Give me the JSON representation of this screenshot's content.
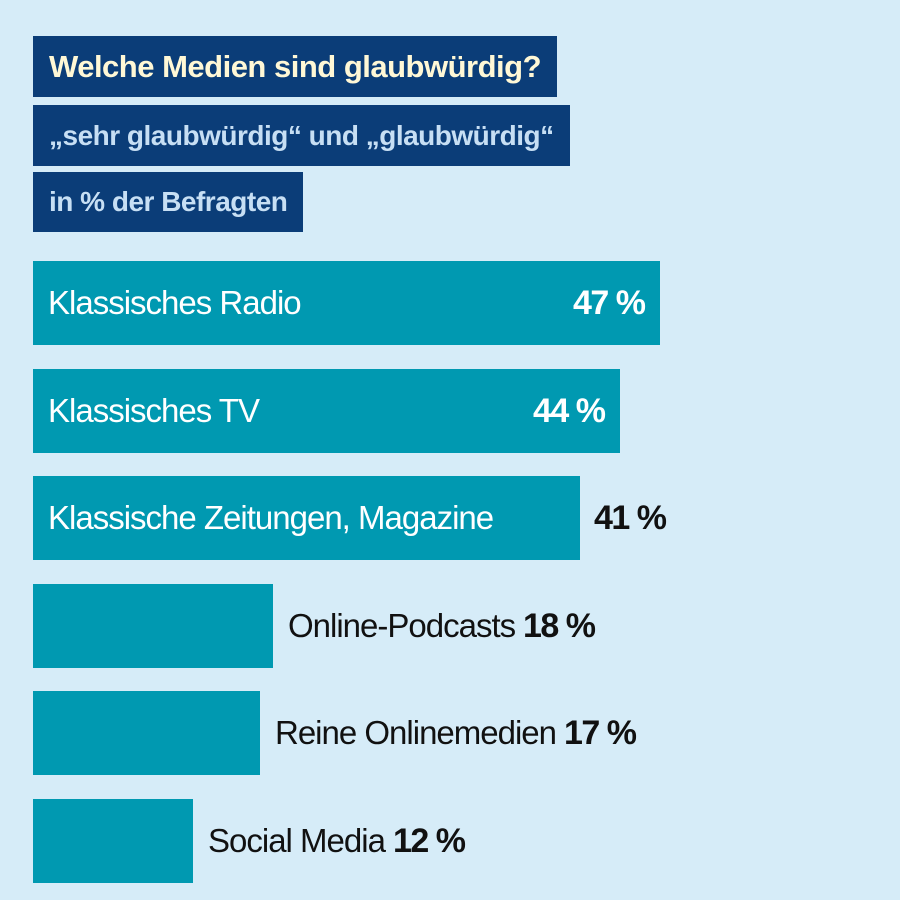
{
  "chart_data": {
    "type": "bar",
    "orientation": "horizontal",
    "title": "Welche Medien sind glaubwürdig?",
    "subtitle": "„sehr glaubwürdig“ und „glaubwürdig“",
    "unit_label": "in % der Befragten",
    "categories": [
      "Klassisches Radio",
      "Klassisches TV",
      "Klassische Zeitungen, Magazine",
      "Online-Podcasts",
      "Reine Onlinemedien",
      "Social Media"
    ],
    "values": [
      47,
      44,
      41,
      18,
      17,
      12
    ],
    "value_labels": [
      "47 %",
      "44 %",
      "41 %",
      "18 %",
      "17 %",
      "12 %"
    ],
    "label_positions": [
      "inside",
      "inside",
      "inside",
      "outside",
      "outside",
      "outside"
    ],
    "value_positions": [
      "inside",
      "inside",
      "outside",
      "outside",
      "outside",
      "outside"
    ],
    "xlim": [
      0,
      47
    ],
    "grid": false,
    "legend": "none",
    "colors": {
      "background": "#d6ecf8",
      "bar": "#0099b1",
      "title_box": "#0b3d78",
      "title_text": "#fff8d6",
      "subtitle_text": "#c7dff4"
    }
  }
}
